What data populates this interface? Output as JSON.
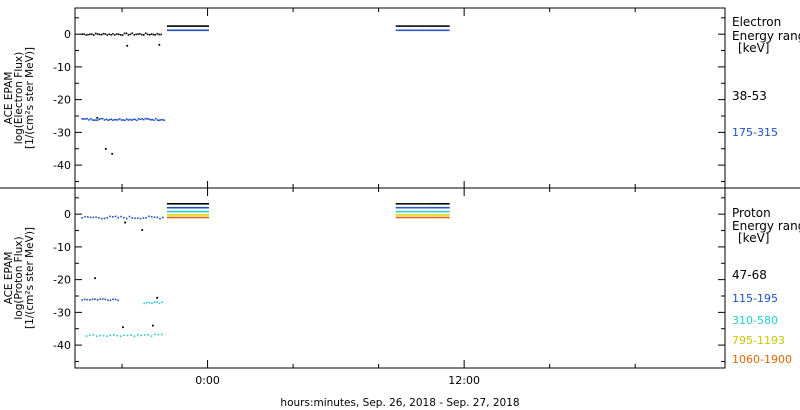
{
  "chart_data": [
    {
      "type": "scatter",
      "panel": "electron",
      "ylabel": [
        "ACE EPAM",
        "log(Electron Flux)",
        "[1/(cm²s ster MeV)]"
      ],
      "ylim": [
        -47,
        8
      ],
      "yticks": [
        0,
        -10,
        -20,
        -30,
        -40
      ],
      "legend_title": [
        "Electron",
        "Energy ranges",
        "[keV]"
      ],
      "series": [
        {
          "name": "38-53",
          "color": "#000000",
          "segments": [
            {
              "x": [
                -5.9,
                -2.2
              ],
              "y": 0,
              "step": 0.09,
              "jitter": 0.3
            },
            {
              "x": [
                -1.9,
                0.0
              ],
              "y": 2.5,
              "step": 0.07,
              "jitter": 0
            },
            {
              "x": [
                8.8,
                11.3
              ],
              "y": 2.5,
              "step": 0.07,
              "jitter": 0
            }
          ],
          "points": [
            [
              -3.8,
              -3.5
            ],
            [
              -2.3,
              -3.2
            ],
            [
              -5.2,
              -25.5
            ],
            [
              -4.8,
              -35
            ],
            [
              -4.5,
              -36.5
            ]
          ]
        },
        {
          "name": "175-315",
          "color": "#1e50c8",
          "segments": [
            {
              "x": [
                -5.9,
                -2.0
              ],
              "y": -26,
              "step": 0.08,
              "jitter": 0.3
            },
            {
              "x": [
                -1.9,
                0.0
              ],
              "y": 1.2,
              "step": 0.07,
              "jitter": 0
            },
            {
              "x": [
                8.8,
                11.3
              ],
              "y": 1.2,
              "step": 0.07,
              "jitter": 0
            }
          ],
          "points": []
        }
      ]
    },
    {
      "type": "scatter",
      "panel": "proton",
      "ylabel": [
        "ACE EPAM",
        "log(Proton Flux)",
        "[1/(cm²s ster MeV)]"
      ],
      "ylim": [
        -47,
        8
      ],
      "yticks": [
        0,
        -10,
        -20,
        -30,
        -40
      ],
      "legend_title": [
        "Proton",
        "Energy ranges",
        "[keV]"
      ],
      "series": [
        {
          "name": "47-68",
          "color": "#000000",
          "segments": [
            {
              "x": [
                -1.9,
                0.0
              ],
              "y": 3.2,
              "step": 0.07,
              "jitter": 0
            },
            {
              "x": [
                8.8,
                11.3
              ],
              "y": 3.2,
              "step": 0.07,
              "jitter": 0
            }
          ],
          "points": [
            [
              -5.3,
              -19.5
            ],
            [
              -4.0,
              -34.5
            ],
            [
              -2.6,
              -34
            ],
            [
              -2.4,
              -25.5
            ],
            [
              -3.9,
              -2.5
            ],
            [
              -3.1,
              -4.8
            ]
          ]
        },
        {
          "name": "115-195",
          "color": "#1e50c8",
          "segments": [
            {
              "x": [
                -5.9,
                -2.1
              ],
              "y": -1,
              "step": 0.13,
              "jitter": 0.4
            },
            {
              "x": [
                -5.9,
                -4.2
              ],
              "y": -26,
              "step": 0.12,
              "jitter": 0.3
            },
            {
              "x": [
                -1.9,
                0.0
              ],
              "y": 2.0,
              "step": 0.07,
              "jitter": 0
            },
            {
              "x": [
                8.8,
                11.3
              ],
              "y": 2.0,
              "step": 0.07,
              "jitter": 0
            }
          ],
          "points": []
        },
        {
          "name": "310-580",
          "color": "#22cccc",
          "segments": [
            {
              "x": [
                -3.0,
                -2.1
              ],
              "y": -27,
              "step": 0.12,
              "jitter": 0.3
            },
            {
              "x": [
                -5.7,
                -2.1
              ],
              "y": -37,
              "step": 0.16,
              "jitter": 0.3
            },
            {
              "x": [
                -1.9,
                0.0
              ],
              "y": 0.8,
              "step": 0.07,
              "jitter": 0
            },
            {
              "x": [
                8.8,
                11.3
              ],
              "y": 0.8,
              "step": 0.07,
              "jitter": 0
            }
          ],
          "points": []
        },
        {
          "name": "795-1193",
          "color": "#d8d800",
          "segments": [
            {
              "x": [
                -1.9,
                0.0
              ],
              "y": -0.2,
              "step": 0.07,
              "jitter": 0
            },
            {
              "x": [
                8.8,
                11.3
              ],
              "y": -0.2,
              "step": 0.07,
              "jitter": 0
            }
          ],
          "points": []
        },
        {
          "name": "1060-1900",
          "color": "#e06400",
          "segments": [
            {
              "x": [
                -1.9,
                0.0
              ],
              "y": -1.0,
              "step": 0.07,
              "jitter": 0
            },
            {
              "x": [
                8.8,
                11.3
              ],
              "y": -1.0,
              "step": 0.07,
              "jitter": 0
            }
          ],
          "points": []
        }
      ]
    }
  ],
  "x_axis": {
    "xlim": [
      -6.2,
      24.2
    ],
    "major_ticks": [
      {
        "x": 0,
        "label": "0:00"
      },
      {
        "x": 12,
        "label": "12:00"
      }
    ],
    "minor_ticks": [
      -4,
      4,
      8,
      16,
      20
    ],
    "label": "hours:minutes, Sep. 26, 2018 - Sep. 27, 2018"
  }
}
